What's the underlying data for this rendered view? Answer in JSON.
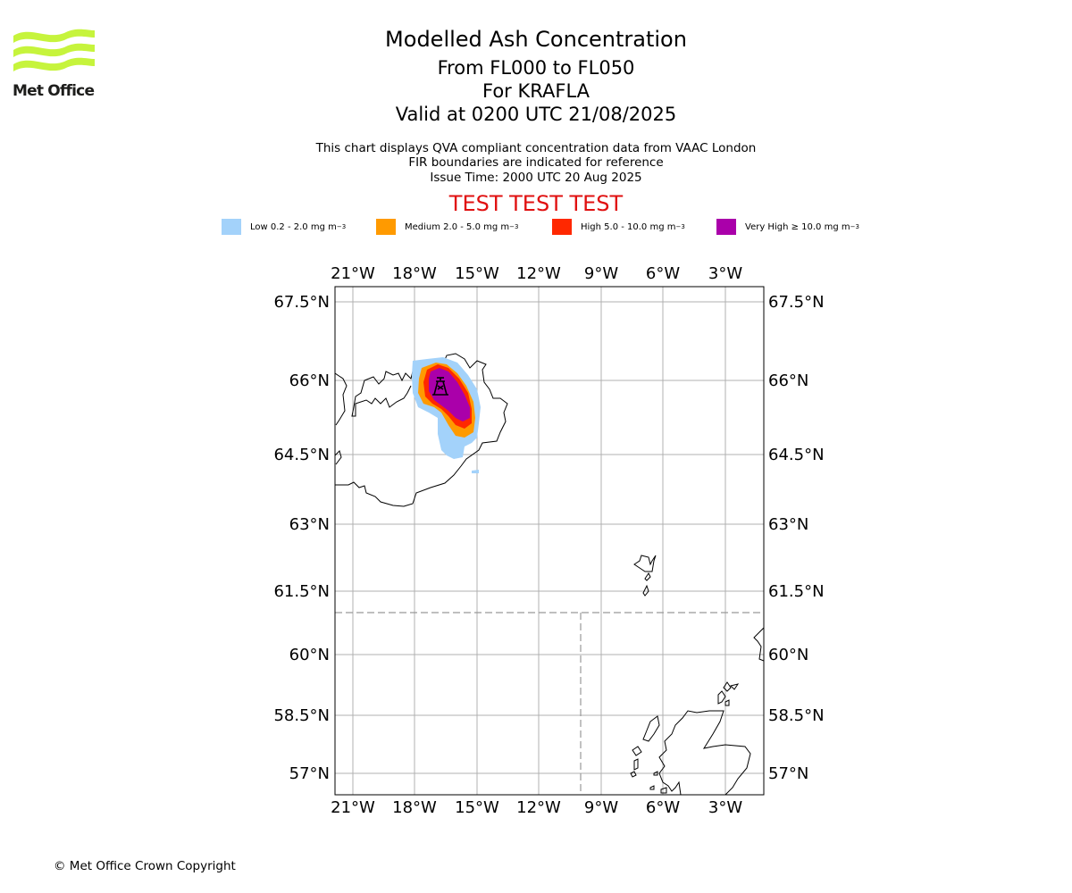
{
  "logo": {
    "name": "Met Office"
  },
  "header": {
    "title": "Modelled Ash Concentration",
    "levels": "From FL000 to FL050",
    "volcano": "For KRAFLA",
    "valid": "Valid at 0200 UTC 21/08/2025",
    "note1": "This chart displays QVA compliant concentration data from VAAC London",
    "note2": "FIR boundaries are indicated for reference",
    "issue": "Issue Time: 2000 UTC 20 Aug 2025",
    "test_banner": "TEST TEST TEST"
  },
  "legend": [
    {
      "label": "Low 0.2 - 2.0 mg m",
      "color": "#a3d2fa"
    },
    {
      "label": "Medium 2.0 - 5.0 mg m",
      "color": "#ff9a00"
    },
    {
      "label": "High 5.0 - 10.0 mg m",
      "color": "#ff2800"
    },
    {
      "label": "Very High ≥ 10.0 mg m",
      "color": "#aa00aa"
    }
  ],
  "legend_unit_exp": "−3",
  "map": {
    "lon_ticks": [
      "21°W",
      "18°W",
      "15°W",
      "12°W",
      "9°W",
      "6°W",
      "3°W"
    ],
    "lat_ticks": [
      "67.5°N",
      "66°N",
      "64.5°N",
      "63°N",
      "61.5°N",
      "60°N",
      "58.5°N",
      "57°N"
    ],
    "volcano_icon": "volcano-icon",
    "colors": {
      "low": "#a3d2fa",
      "medium": "#ff9a00",
      "high": "#ff2800",
      "very_high": "#aa00aa"
    }
  },
  "footer": {
    "copyright": "© Met Office Crown Copyright"
  }
}
